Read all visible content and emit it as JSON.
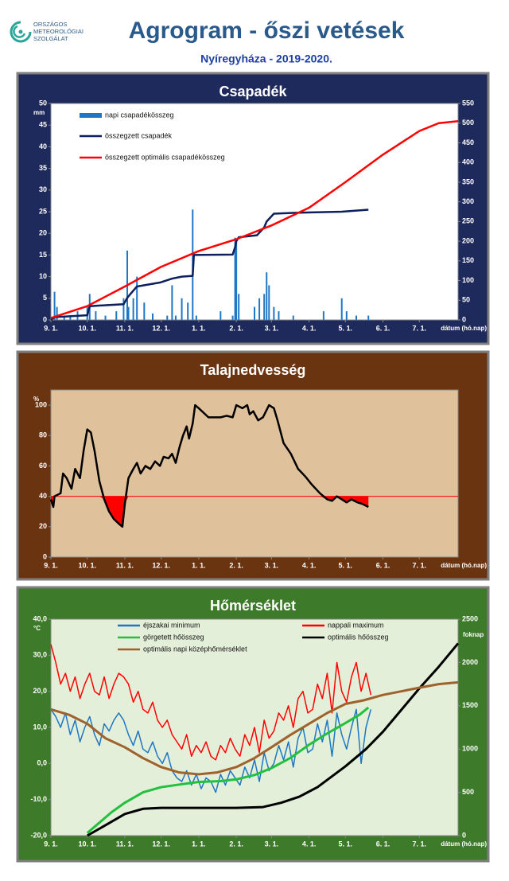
{
  "header": {
    "logo_lines": [
      "ORSZÁGOS",
      "METEOROLÓGIAI",
      "SZOLGÁLAT"
    ],
    "title": "Agrogram - őszi vetések",
    "subtitle": "Nyíregyháza  - 2019-2020."
  },
  "chart_data": [
    {
      "type": "combo",
      "title": "Csapadék",
      "panel_color": "#1f2a5c",
      "plot_color": "#ffffff",
      "ylabel": "mm",
      "xlabel": "dátum (hó.nap)",
      "xlim": [
        0,
        336
      ],
      "xticks": [
        {
          "value": 0,
          "label": "9. 1."
        },
        {
          "value": 30,
          "label": "10. 1."
        },
        {
          "value": 61,
          "label": "11. 1."
        },
        {
          "value": 91,
          "label": "12. 1."
        },
        {
          "value": 122,
          "label": "1. 1."
        },
        {
          "value": 153,
          "label": "2. 1."
        },
        {
          "value": 182,
          "label": "3. 1."
        },
        {
          "value": 213,
          "label": "4. 1."
        },
        {
          "value": 243,
          "label": "5. 1."
        },
        {
          "value": 274,
          "label": "6. 1."
        },
        {
          "value": 304,
          "label": "7. 1."
        }
      ],
      "ylim": [
        0,
        50
      ],
      "yticks": [
        0,
        5,
        10,
        15,
        20,
        25,
        30,
        35,
        40,
        45,
        50
      ],
      "y2lim": [
        0,
        550
      ],
      "y2ticks": [
        0,
        50,
        100,
        150,
        200,
        250,
        300,
        350,
        400,
        450,
        500,
        550
      ],
      "series": [
        {
          "name": "napi csapadékösszeg",
          "color": "#1f77c4",
          "type": "bar",
          "x": [
            3,
            5,
            11,
            16,
            22,
            30,
            32,
            37,
            45,
            54,
            60,
            63,
            64,
            68,
            71,
            77,
            84,
            96,
            100,
            103,
            108,
            113,
            117,
            120,
            140,
            150,
            152,
            153,
            155,
            168,
            172,
            176,
            178,
            180,
            184,
            188,
            200,
            225,
            240,
            244,
            252,
            262
          ],
          "values": [
            6.5,
            3,
            1,
            1,
            2,
            3,
            6,
            2,
            1,
            2,
            5,
            16,
            3,
            5,
            10,
            4,
            1.5,
            1,
            8,
            1,
            5,
            4,
            25.5,
            1,
            2,
            1,
            19,
            18,
            6,
            3,
            5,
            6,
            11,
            8,
            3,
            2,
            1,
            2,
            5,
            2,
            1,
            1
          ]
        },
        {
          "name": "összegzett csapadék",
          "color": "#0d1f5c",
          "type": "line",
          "axis": "y2",
          "x": [
            0,
            3,
            30,
            32,
            60,
            63,
            64,
            71,
            90,
            100,
            108,
            117,
            118,
            150,
            152,
            153,
            155,
            170,
            176,
            178,
            184,
            200,
            240,
            262
          ],
          "values": [
            0,
            7,
            12,
            35,
            40,
            56,
            60,
            85,
            95,
            105,
            110,
            112,
            165,
            166,
            185,
            200,
            210,
            215,
            235,
            250,
            270,
            272,
            275,
            280
          ]
        },
        {
          "name": "összegzett optimális csapadékösszeg",
          "color": "#ff0000",
          "type": "line",
          "axis": "y2",
          "x": [
            0,
            30,
            61,
            91,
            122,
            153,
            182,
            213,
            243,
            274,
            304,
            320,
            336
          ],
          "values": [
            5,
            35,
            85,
            135,
            175,
            205,
            240,
            285,
            350,
            420,
            480,
            500,
            505
          ]
        }
      ]
    },
    {
      "type": "line",
      "title": "Talajnedvesség",
      "panel_color": "#6b3410",
      "plot_color": "#dfc19c",
      "ylabel": "%",
      "xlabel": "dátum (hó.nap)",
      "threshold": 40,
      "threshold_color": "#ff0000",
      "xlim": [
        0,
        336
      ],
      "xticks": [
        {
          "value": 0,
          "label": "9. 1."
        },
        {
          "value": 30,
          "label": "10. 1."
        },
        {
          "value": 61,
          "label": "11. 1."
        },
        {
          "value": 91,
          "label": "12. 1."
        },
        {
          "value": 122,
          "label": "1. 1."
        },
        {
          "value": 153,
          "label": "2. 1."
        },
        {
          "value": 182,
          "label": "3. 1."
        },
        {
          "value": 213,
          "label": "4. 1."
        },
        {
          "value": 243,
          "label": "5. 1."
        },
        {
          "value": 274,
          "label": "6. 1."
        },
        {
          "value": 304,
          "label": "7. 1."
        }
      ],
      "ylim": [
        0,
        110
      ],
      "yticks": [
        0,
        20,
        40,
        60,
        80,
        100
      ],
      "series": [
        {
          "color": "#000000",
          "type": "line",
          "x": [
            0,
            2,
            3,
            8,
            10,
            13,
            17,
            20,
            24,
            27,
            30,
            33,
            36,
            40,
            44,
            48,
            52,
            56,
            59,
            61,
            64,
            68,
            71,
            74,
            78,
            82,
            86,
            90,
            93,
            97,
            100,
            103,
            106,
            109,
            112,
            114,
            117,
            119,
            122,
            126,
            130,
            140,
            145,
            150,
            153,
            158,
            162,
            164,
            167,
            171,
            175,
            180,
            184,
            187,
            192,
            198,
            204,
            210,
            215,
            222,
            228,
            232,
            236,
            240,
            244,
            248,
            253,
            257,
            262
          ],
          "values": [
            38,
            33,
            40,
            42,
            55,
            52,
            45,
            58,
            52,
            70,
            84,
            82,
            70,
            50,
            38,
            30,
            25,
            22,
            20,
            35,
            52,
            58,
            62,
            55,
            60,
            58,
            63,
            60,
            66,
            65,
            68,
            62,
            72,
            80,
            86,
            78,
            88,
            100,
            98,
            95,
            92,
            92,
            93,
            92,
            100,
            98,
            100,
            94,
            96,
            90,
            92,
            100,
            98,
            90,
            75,
            68,
            58,
            53,
            48,
            42,
            38,
            37,
            40,
            38,
            36,
            38,
            36,
            35,
            33
          ]
        }
      ]
    },
    {
      "type": "line",
      "title": "Hőmérséklet",
      "panel_color": "#3d7a2a",
      "plot_color": "#e3efd9",
      "ylabel": "°C",
      "y2label": "foknap",
      "xlabel": "dátum (hó.nap)",
      "xlim": [
        0,
        336
      ],
      "xticks": [
        {
          "value": 0,
          "label": "9. 1."
        },
        {
          "value": 30,
          "label": "10. 1."
        },
        {
          "value": 61,
          "label": "11. 1."
        },
        {
          "value": 91,
          "label": "12. 1."
        },
        {
          "value": 122,
          "label": "1. 1."
        },
        {
          "value": 153,
          "label": "2. 1."
        },
        {
          "value": 182,
          "label": "3. 1."
        },
        {
          "value": 213,
          "label": "4. 1."
        },
        {
          "value": 243,
          "label": "5. 1."
        },
        {
          "value": 274,
          "label": "6. 1."
        },
        {
          "value": 304,
          "label": "7. 1."
        }
      ],
      "ylim": [
        -20,
        40
      ],
      "yticks": [
        {
          "value": -20,
          "label": "-20,0"
        },
        {
          "value": -10,
          "label": "-10,0"
        },
        {
          "value": 0,
          "label": "0,0"
        },
        {
          "value": 10,
          "label": "10,0"
        },
        {
          "value": 20,
          "label": "20,0"
        },
        {
          "value": 30,
          "label": "30,0"
        },
        {
          "value": 40,
          "label": "40,0"
        }
      ],
      "y2lim": [
        0,
        2500
      ],
      "y2ticks": [
        0,
        500,
        1000,
        1500,
        2000,
        2500
      ],
      "series": [
        {
          "name": "éjszakai minimum",
          "color": "#1f77c4",
          "type": "line",
          "x": [
            0,
            4,
            8,
            12,
            16,
            20,
            24,
            28,
            32,
            36,
            40,
            44,
            48,
            52,
            56,
            60,
            64,
            68,
            72,
            76,
            80,
            84,
            88,
            92,
            96,
            100,
            104,
            108,
            112,
            116,
            120,
            124,
            128,
            132,
            136,
            140,
            144,
            148,
            152,
            156,
            160,
            164,
            168,
            172,
            176,
            180,
            184,
            188,
            192,
            196,
            200,
            204,
            208,
            212,
            216,
            220,
            224,
            228,
            232,
            236,
            240,
            244,
            248,
            252,
            256,
            260,
            264
          ],
          "values": [
            15,
            13,
            10,
            14,
            8,
            12,
            6,
            10,
            13,
            8,
            5,
            11,
            9,
            12,
            14,
            12,
            8,
            5,
            9,
            4,
            3,
            6,
            2,
            0,
            3,
            -2,
            -4,
            -5,
            -2,
            -6,
            -3,
            -7,
            -4,
            -5,
            -8,
            -3,
            -6,
            -2,
            -4,
            -6,
            -1,
            -4,
            1,
            -5,
            3,
            -2,
            0,
            5,
            1,
            6,
            -1,
            7,
            10,
            3,
            4,
            11,
            6,
            12,
            2,
            14,
            8,
            4,
            10,
            15,
            0,
            10,
            15
          ]
        },
        {
          "name": "nappali maximum",
          "color": "#ff0000",
          "type": "line",
          "x": [
            0,
            4,
            8,
            12,
            16,
            20,
            24,
            28,
            32,
            36,
            40,
            44,
            48,
            52,
            56,
            60,
            64,
            68,
            72,
            76,
            80,
            84,
            88,
            92,
            96,
            100,
            104,
            108,
            112,
            116,
            120,
            124,
            128,
            132,
            136,
            140,
            144,
            148,
            152,
            156,
            160,
            164,
            168,
            172,
            176,
            180,
            184,
            188,
            192,
            196,
            200,
            204,
            208,
            212,
            216,
            220,
            224,
            228,
            232,
            236,
            240,
            244,
            248,
            252,
            256,
            260,
            264
          ],
          "values": [
            33,
            28,
            22,
            25,
            20,
            24,
            18,
            22,
            25,
            20,
            19,
            24,
            18,
            22,
            25,
            24,
            22,
            17,
            20,
            15,
            14,
            17,
            12,
            10,
            12,
            8,
            6,
            4,
            8,
            2,
            5,
            3,
            6,
            2,
            1,
            5,
            3,
            7,
            4,
            2,
            8,
            5,
            10,
            3,
            12,
            7,
            9,
            14,
            12,
            16,
            10,
            18,
            20,
            14,
            15,
            22,
            18,
            25,
            14,
            28,
            20,
            17,
            24,
            28,
            20,
            25,
            19
          ]
        },
        {
          "name": "görgetett hőösszeg",
          "color": "#22c03c",
          "type": "line",
          "axis": "y2",
          "x": [
            30,
            40,
            50,
            61,
            76,
            91,
            106,
            122,
            140,
            153,
            168,
            182,
            198,
            213,
            228,
            243,
            255,
            262
          ],
          "values": [
            30,
            150,
            270,
            380,
            500,
            560,
            590,
            620,
            630,
            650,
            700,
            780,
            900,
            1050,
            1180,
            1300,
            1400,
            1480
          ]
        },
        {
          "name": "optimális hőösszeg",
          "color": "#000000",
          "type": "line",
          "axis": "y2",
          "x": [
            30,
            45,
            61,
            76,
            91,
            122,
            153,
            175,
            190,
            205,
            220,
            243,
            260,
            274,
            289,
            304,
            320,
            336
          ],
          "values": [
            0,
            120,
            250,
            310,
            320,
            320,
            320,
            330,
            380,
            450,
            560,
            800,
            1000,
            1200,
            1450,
            1700,
            1950,
            2220
          ]
        },
        {
          "name": "optimális napi középhőmérséklet",
          "color": "#a0622d",
          "type": "line",
          "x": [
            0,
            15,
            30,
            45,
            61,
            76,
            91,
            106,
            122,
            137,
            153,
            168,
            182,
            198,
            213,
            228,
            243,
            258,
            274,
            289,
            304,
            320,
            336
          ],
          "values": [
            15,
            13.5,
            11,
            7,
            4.5,
            1.5,
            -1,
            -2.5,
            -3,
            -2.5,
            -1,
            1.5,
            4.5,
            8,
            11,
            14,
            16.5,
            17.5,
            19,
            20,
            21,
            22,
            22.5
          ]
        }
      ]
    }
  ]
}
